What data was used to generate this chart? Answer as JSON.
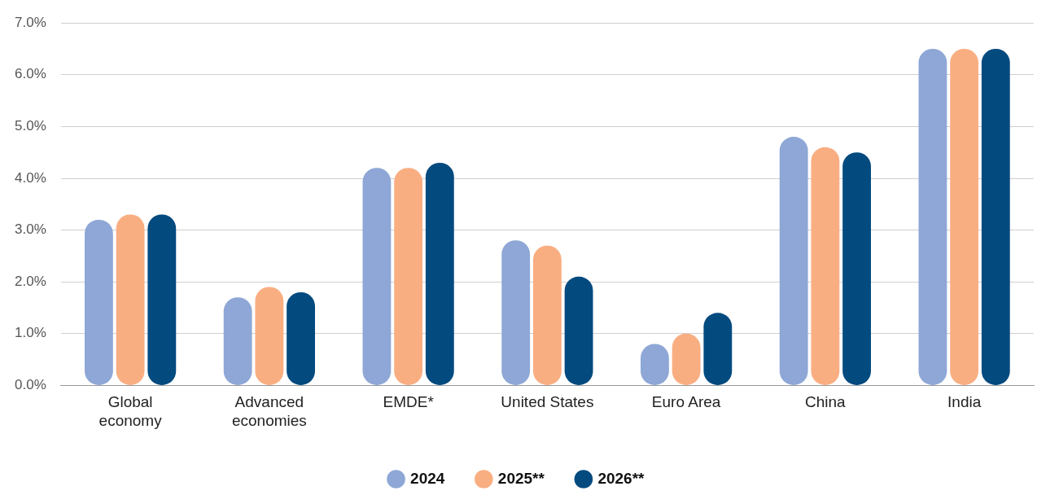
{
  "chart_data": {
    "type": "bar",
    "categories": [
      "Global\neconomy",
      "Advanced\neconomies",
      "EMDE*",
      "United States",
      "Euro Area",
      "China",
      "India"
    ],
    "series": [
      {
        "name": "2024",
        "color": "#8ea7d6",
        "values": [
          3.2,
          1.7,
          4.2,
          2.8,
          0.8,
          4.8,
          6.5
        ]
      },
      {
        "name": "2025**",
        "color": "#f9ae82",
        "values": [
          3.3,
          1.9,
          4.2,
          2.7,
          1.0,
          4.6,
          6.5
        ]
      },
      {
        "name": "2026**",
        "color": "#034a7f",
        "values": [
          3.3,
          1.8,
          4.3,
          2.1,
          1.4,
          4.5,
          6.5
        ]
      }
    ],
    "ylim": [
      0,
      7
    ],
    "yticks": [
      {
        "value": 0,
        "label": "0.0%"
      },
      {
        "value": 1,
        "label": "1.0%"
      },
      {
        "value": 2,
        "label": "2.0%"
      },
      {
        "value": 3,
        "label": "3.0%"
      },
      {
        "value": 4,
        "label": "4.0%"
      },
      {
        "value": 5,
        "label": "5.0%"
      },
      {
        "value": 6,
        "label": "6.0%"
      },
      {
        "value": 7,
        "label": "7.0%"
      }
    ],
    "grid": "y",
    "legend": "bottom"
  }
}
